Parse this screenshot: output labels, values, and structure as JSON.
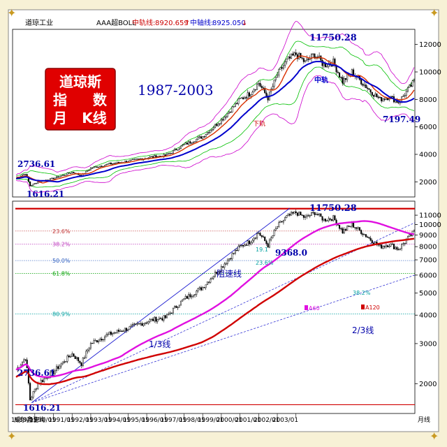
{
  "header": {
    "index_name": "道琼工业",
    "indicator_name": "AAA超BOLL",
    "upper_label": "中轨线:",
    "upper_value": "8920.659",
    "upper_arrow": "↑",
    "mid_label": "中轴线:",
    "mid_value": "8925.050",
    "mid_arrow": "↓"
  },
  "title_box": {
    "line1": "道琼斯",
    "line2a": "指",
    "line2b": "数",
    "line3a": "月",
    "line3b": "K线"
  },
  "period_label": "1987-2003",
  "footer": {
    "brand": "威尔鑫咨询",
    "period_unit": "月线"
  },
  "colors": {
    "background": "#ffffff",
    "candle_up": "#ffffff",
    "candle_down": "#000000",
    "ma_short": "#d93000",
    "ma_long": "#0000cc",
    "boll_inner": "#00c000",
    "boll_outer": "#cc00cc",
    "ma60": "#e010e0",
    "ma120": "#d00000",
    "channel": "#1a1ad0",
    "fib": "#c03030"
  },
  "chart_data": [
    {
      "type": "candlestick",
      "panel": "top",
      "ylim": [
        1000,
        13000
      ],
      "y_ticks": [
        2000,
        4000,
        6000,
        8000,
        10000,
        12000
      ],
      "annotations": {
        "high": "11750.28",
        "start": "2736.61",
        "low": "1616.21",
        "recent_low": "7197.49",
        "midline_tag": "中轨",
        "bottom_tag": "下轨"
      },
      "grid": false
    },
    {
      "type": "candlestick",
      "panel": "bottom",
      "scale": "log",
      "ylim": [
        1500,
        12500
      ],
      "y_ticks": [
        2000,
        3000,
        4000,
        5000,
        6000,
        7000,
        8000,
        9000,
        10000,
        11000
      ],
      "x_labels": [
        "1989/01",
        "1990/01",
        "1991/01",
        "1992/01",
        "1993/01",
        "1994/01",
        "1995/01",
        "1996/01",
        "1997/01",
        "1998/01",
        "1999/01",
        "2000/01",
        "2001/01",
        "2002/01",
        "2003/01"
      ],
      "fib_levels": [
        {
          "label": "23.6%"
        },
        {
          "label": "38.2%"
        },
        {
          "label": "50.0%"
        },
        {
          "label": "61.8%"
        },
        {
          "label": "80.9%"
        }
      ],
      "annotations": {
        "high": "11750.28",
        "start": "2736.61",
        "low": "1616.21",
        "level_value": "9368.0",
        "fib_19": "19.1",
        "fib_236": "23.6%",
        "fib_382": "38.2%",
        "resistance_line": "阻速线",
        "one_third_line": "1/3线",
        "two_third_line": "2/3线",
        "ma60": "A60",
        "ma120": "A120"
      },
      "grid": false
    }
  ]
}
